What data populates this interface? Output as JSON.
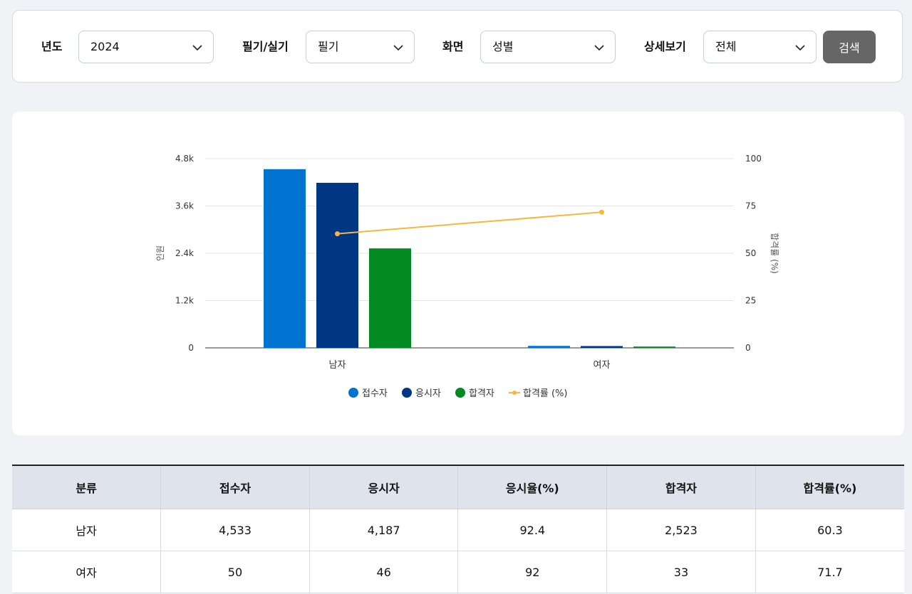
{
  "filters": {
    "year": {
      "label": "년도",
      "value": "2024"
    },
    "exam_type": {
      "label": "필기/실기",
      "value": "필기"
    },
    "screen": {
      "label": "화면",
      "value": "성별"
    },
    "detail": {
      "label": "상세보기",
      "value": "전체"
    },
    "search_label": "검색"
  },
  "chart_data": {
    "type": "bar",
    "categories": [
      "남자",
      "여자"
    ],
    "series": [
      {
        "name": "접수자",
        "type": "bar",
        "axis": "left",
        "color": "#0074d0",
        "values": [
          4533,
          50
        ]
      },
      {
        "name": "응시자",
        "type": "bar",
        "axis": "left",
        "color": "#003784",
        "values": [
          4187,
          46
        ]
      },
      {
        "name": "합격자",
        "type": "bar",
        "axis": "left",
        "color": "#008a21",
        "values": [
          2523,
          33
        ]
      },
      {
        "name": "합격률 (%)",
        "type": "line",
        "axis": "right",
        "color": "#f8b640",
        "values": [
          60.3,
          71.7
        ]
      }
    ],
    "ylabel": "인원",
    "y2label": "합격률 (%)",
    "ylim": [
      0,
      4800
    ],
    "y2lim": [
      0,
      100
    ],
    "y_ticks": [
      "0",
      "1.2k",
      "2.4k",
      "3.6k",
      "4.8k"
    ],
    "y2_ticks": [
      "0",
      "25",
      "50",
      "75",
      "100"
    ],
    "grid": true,
    "legend": "bottom-center"
  },
  "table": {
    "headers": [
      "분류",
      "접수자",
      "응시자",
      "응시율(%)",
      "합격자",
      "합격률(%)"
    ],
    "rows": [
      [
        "남자",
        "4,533",
        "4,187",
        "92.4",
        "2,523",
        "60.3"
      ],
      [
        "여자",
        "50",
        "46",
        "92",
        "33",
        "71.7"
      ]
    ]
  }
}
